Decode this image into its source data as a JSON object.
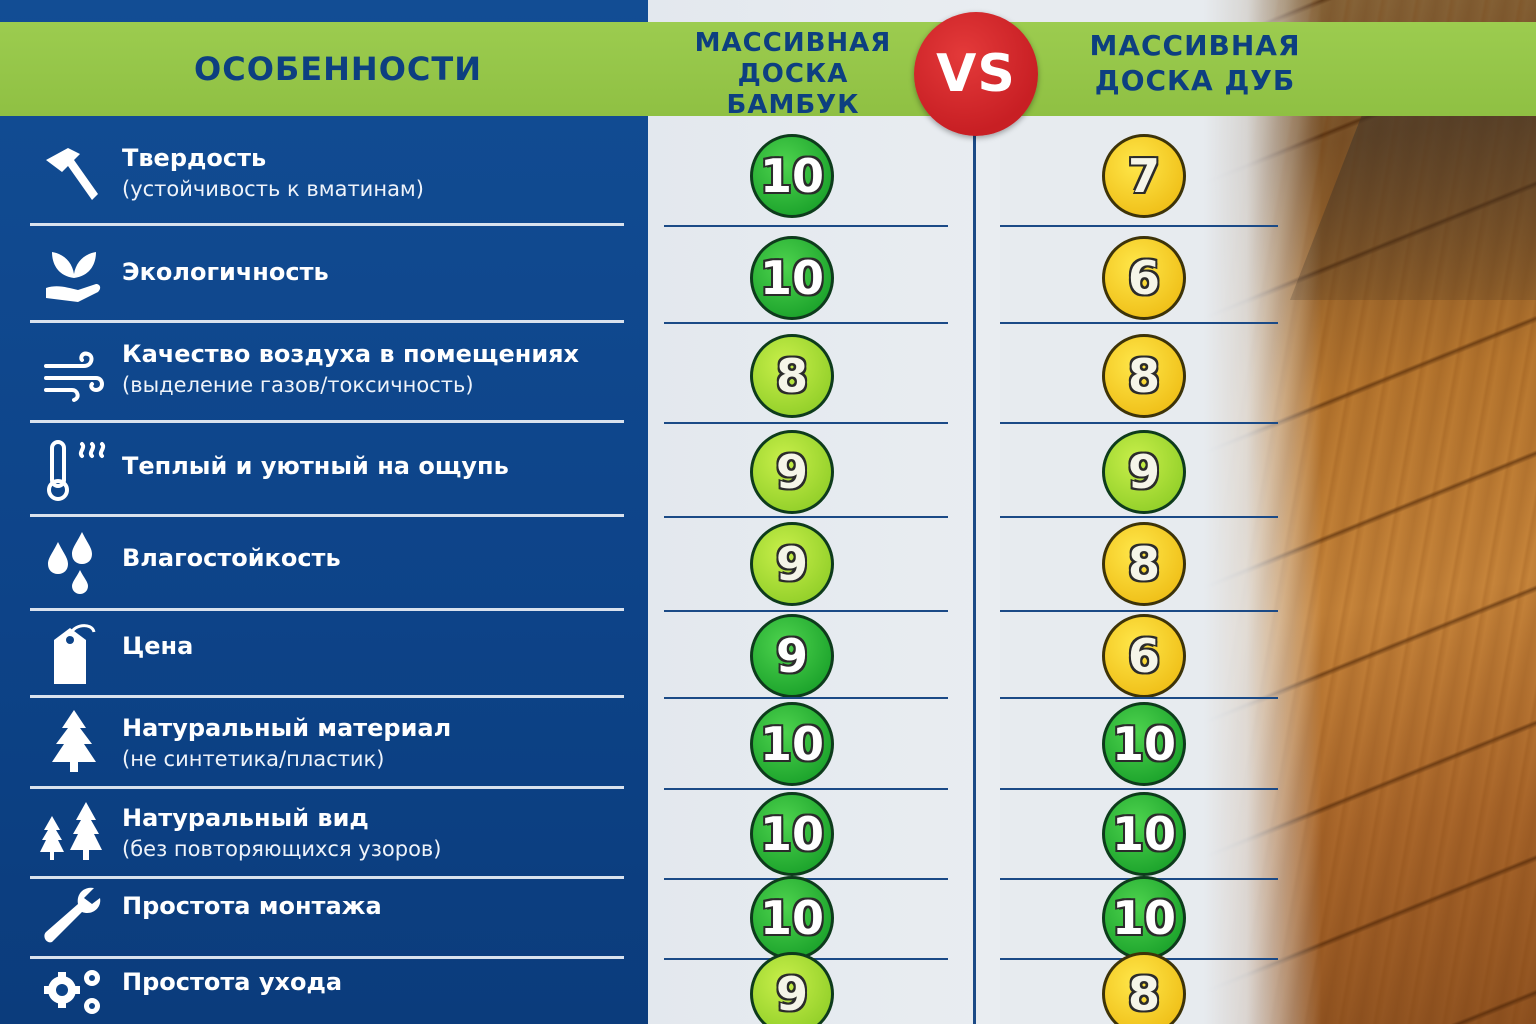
{
  "header": {
    "features": "ОСОБЕННОСТИ",
    "bamboo_line1": "МАССИВНАЯ",
    "bamboo_line2": "ДОСКА",
    "bamboo_line3": "БАМБУК",
    "vs": "VS",
    "oak_line1": "МАССИВНАЯ",
    "oak_line2": "ДОСКА ДУБ"
  },
  "colors": {
    "navy": "#0d4388",
    "header_green": "#95c648",
    "vs_red": "#c81f24",
    "score_green": "#22a830",
    "score_lime": "#a2d92f",
    "score_yellow": "#f3c91f"
  },
  "rows": [
    {
      "icon": "hammer-icon",
      "title": "Твердость",
      "subtitle": "(устойчивость к вматинам)",
      "bamboo": "10",
      "bamboo_color": "green",
      "oak": "7",
      "oak_color": "yellow"
    },
    {
      "icon": "leaf-hand-icon",
      "title": "Экологичность",
      "subtitle": "",
      "bamboo": "10",
      "bamboo_color": "green",
      "oak": "6",
      "oak_color": "yellow"
    },
    {
      "icon": "wind-icon",
      "title": "Качество воздуха в помещениях",
      "subtitle": "(выделение газов/токсичность)",
      "bamboo": "8",
      "bamboo_color": "lime",
      "oak": "8",
      "oak_color": "yellow"
    },
    {
      "icon": "thermometer-icon",
      "title": "Теплый и уютный на ощупь",
      "subtitle": "",
      "bamboo": "9",
      "bamboo_color": "lime",
      "oak": "9",
      "oak_color": "lime"
    },
    {
      "icon": "water-drops-icon",
      "title": "Влагостойкость",
      "subtitle": "",
      "bamboo": "9",
      "bamboo_color": "lime",
      "oak": "8",
      "oak_color": "yellow"
    },
    {
      "icon": "price-tag-icon",
      "title": "Цена",
      "subtitle": "",
      "bamboo": "9",
      "bamboo_color": "green",
      "oak": "6",
      "oak_color": "yellow"
    },
    {
      "icon": "tree-icon",
      "title": "Натуральный материал",
      "subtitle": "(не синтетика/пластик)",
      "bamboo": "10",
      "bamboo_color": "green",
      "oak": "10",
      "oak_color": "green"
    },
    {
      "icon": "trees-icon",
      "title": "Натуральный вид",
      "subtitle": "(без повторяющихся узоров)",
      "bamboo": "10",
      "bamboo_color": "green",
      "oak": "10",
      "oak_color": "green"
    },
    {
      "icon": "wrench-icon",
      "title": "Простота монтажа",
      "subtitle": "",
      "bamboo": "10",
      "bamboo_color": "green",
      "oak": "10",
      "oak_color": "green"
    },
    {
      "icon": "gears-icon",
      "title": "Простота ухода",
      "subtitle": "",
      "bamboo": "9",
      "bamboo_color": "lime",
      "oak": "8",
      "oak_color": "yellow"
    }
  ]
}
